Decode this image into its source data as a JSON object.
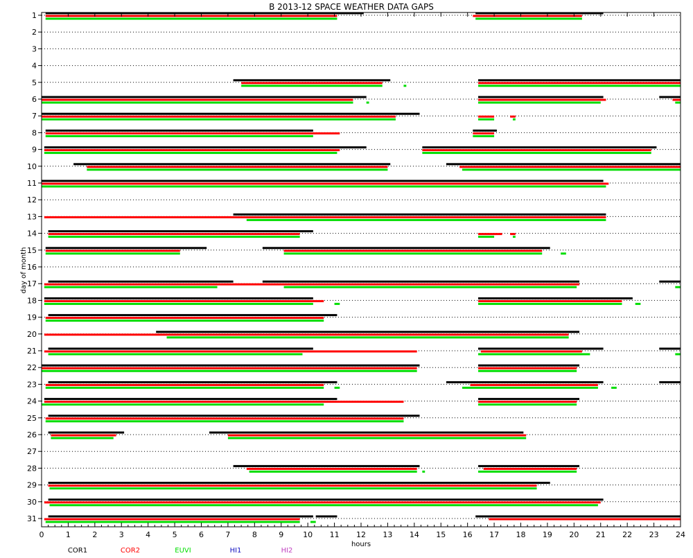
{
  "chart_data": {
    "type": "timeline",
    "title": "B  2013-12 SPACE WEATHER DATA GAPS",
    "xlabel": "hours",
    "ylabel": "day of month",
    "x_ticks": [
      "0",
      "1",
      "2",
      "3",
      "4",
      "5",
      "6",
      "7",
      "8",
      "9",
      "10",
      "11",
      "12",
      "13",
      "14",
      "15",
      "16",
      "17",
      "18",
      "19",
      "20",
      "21",
      "22",
      "23",
      "24"
    ],
    "xlim": [
      0,
      24
    ],
    "days": [
      "1",
      "2",
      "3",
      "4",
      "5",
      "6",
      "7",
      "8",
      "9",
      "10",
      "11",
      "12",
      "13",
      "14",
      "15",
      "16",
      "17",
      "18",
      "19",
      "20",
      "21",
      "22",
      "23",
      "24",
      "25",
      "26",
      "27",
      "28",
      "29",
      "30",
      "31"
    ],
    "grid": true,
    "legend_position": "bottom",
    "series": [
      {
        "name": "COR1",
        "color": "#000000",
        "gaps": [
          {
            "day": 1,
            "segments": [
              [
                0.15,
                12.1
              ],
              [
                16.3,
                21.1
              ]
            ]
          },
          {
            "day": 5,
            "segments": [
              [
                7.2,
                13.1
              ],
              [
                16.4,
                24
              ]
            ]
          },
          {
            "day": 6,
            "segments": [
              [
                0,
                12.2
              ],
              [
                16.4,
                21.1
              ],
              [
                23.2,
                24
              ]
            ]
          },
          {
            "day": 7,
            "segments": [
              [
                0,
                14.2
              ]
            ]
          },
          {
            "day": 8,
            "segments": [
              [
                0.15,
                10.2
              ],
              [
                16.2,
                17.1
              ]
            ]
          },
          {
            "day": 9,
            "segments": [
              [
                0.1,
                12.2
              ],
              [
                14.3,
                23.1
              ]
            ]
          },
          {
            "day": 10,
            "segments": [
              [
                1.2,
                13.1
              ],
              [
                15.2,
                24
              ]
            ]
          },
          {
            "day": 11,
            "segments": [
              [
                0,
                21.1
              ]
            ]
          },
          {
            "day": 13,
            "segments": [
              [
                7.2,
                21.2
              ]
            ]
          },
          {
            "day": 14,
            "segments": [
              [
                0.25,
                10.2
              ]
            ]
          },
          {
            "day": 15,
            "segments": [
              [
                0.15,
                6.2
              ],
              [
                8.3,
                19.1
              ]
            ]
          },
          {
            "day": 17,
            "segments": [
              [
                0.25,
                7.2
              ],
              [
                8.3,
                20.2
              ],
              [
                23.2,
                24
              ]
            ]
          },
          {
            "day": 18,
            "segments": [
              [
                0.1,
                10.2
              ],
              [
                16.4,
                22.2
              ]
            ]
          },
          {
            "day": 19,
            "segments": [
              [
                0.25,
                11.1
              ]
            ]
          },
          {
            "day": 20,
            "segments": [
              [
                4.3,
                20.2
              ]
            ]
          },
          {
            "day": 21,
            "segments": [
              [
                0.25,
                10.2
              ],
              [
                16.4,
                21.1
              ],
              [
                23.2,
                24
              ]
            ]
          },
          {
            "day": 22,
            "segments": [
              [
                0,
                14.2
              ],
              [
                16.4,
                20.2
              ]
            ]
          },
          {
            "day": 23,
            "segments": [
              [
                0.25,
                11.1
              ],
              [
                15.2,
                21.1
              ],
              [
                23.2,
                24
              ]
            ]
          },
          {
            "day": 24,
            "segments": [
              [
                0.1,
                11.1
              ],
              [
                16.4,
                20.2
              ]
            ]
          },
          {
            "day": 25,
            "segments": [
              [
                0.25,
                14.2
              ]
            ]
          },
          {
            "day": 26,
            "segments": [
              [
                0.25,
                3.1
              ],
              [
                6.3,
                18.1
              ]
            ]
          },
          {
            "day": 28,
            "segments": [
              [
                7.2,
                14.2
              ],
              [
                16.4,
                20.2
              ]
            ]
          },
          {
            "day": 29,
            "segments": [
              [
                0.25,
                19.1
              ]
            ]
          },
          {
            "day": 30,
            "segments": [
              [
                0.25,
                21.1
              ]
            ]
          },
          {
            "day": 31,
            "segments": [
              [
                0.25,
                10.2
              ],
              [
                10.3,
                11.1
              ],
              [
                16.3,
                24
              ]
            ]
          }
        ]
      },
      {
        "name": "COR2",
        "color": "#ff0000",
        "gaps": [
          {
            "day": 1,
            "segments": [
              [
                0.15,
                11.1
              ],
              [
                16.2,
                20.3
              ]
            ]
          },
          {
            "day": 5,
            "segments": [
              [
                7.5,
                12.8
              ],
              [
                16.4,
                24
              ]
            ]
          },
          {
            "day": 6,
            "segments": [
              [
                0,
                11.7
              ],
              [
                16.4,
                21.2
              ],
              [
                23.7,
                24
              ]
            ]
          },
          {
            "day": 7,
            "segments": [
              [
                0,
                13.3
              ],
              [
                16.4,
                17
              ],
              [
                17.6,
                17.8
              ]
            ]
          },
          {
            "day": 8,
            "segments": [
              [
                0.15,
                11.2
              ],
              [
                16.2,
                17
              ]
            ]
          },
          {
            "day": 9,
            "segments": [
              [
                0.1,
                11.2
              ],
              [
                14.3,
                22.9
              ]
            ]
          },
          {
            "day": 10,
            "segments": [
              [
                1.7,
                13.0
              ],
              [
                15.7,
                24
              ]
            ]
          },
          {
            "day": 11,
            "segments": [
              [
                0,
                21.3
              ]
            ]
          },
          {
            "day": 13,
            "segments": [
              [
                0.1,
                21.2
              ]
            ]
          },
          {
            "day": 14,
            "segments": [
              [
                0.25,
                9.7
              ],
              [
                16.4,
                17.3
              ],
              [
                17.6,
                17.8
              ]
            ]
          },
          {
            "day": 15,
            "segments": [
              [
                0.15,
                5.2
              ],
              [
                9.1,
                18.8
              ]
            ]
          },
          {
            "day": 17,
            "segments": [
              [
                0.1,
                20.2
              ]
            ]
          },
          {
            "day": 18,
            "segments": [
              [
                0.1,
                10.6
              ],
              [
                16.4,
                21.8
              ]
            ]
          },
          {
            "day": 19,
            "segments": [
              [
                0.15,
                10.6
              ]
            ]
          },
          {
            "day": 20,
            "segments": [
              [
                0.1,
                19.8
              ]
            ]
          },
          {
            "day": 21,
            "segments": [
              [
                0.1,
                14.1
              ],
              [
                16.5,
                20.3
              ]
            ]
          },
          {
            "day": 22,
            "segments": [
              [
                0,
                14.1
              ],
              [
                16.4,
                20.1
              ]
            ]
          },
          {
            "day": 23,
            "segments": [
              [
                0.15,
                10.6
              ],
              [
                16.1,
                20.9
              ]
            ]
          },
          {
            "day": 24,
            "segments": [
              [
                0.1,
                13.6
              ],
              [
                16.4,
                20.1
              ]
            ]
          },
          {
            "day": 25,
            "segments": [
              [
                0.15,
                13.6
              ]
            ]
          },
          {
            "day": 26,
            "segments": [
              [
                0.35,
                2.8
              ],
              [
                7.0,
                18.2
              ]
            ]
          },
          {
            "day": 28,
            "segments": [
              [
                7.7,
                14.1
              ],
              [
                16.6,
                20.1
              ]
            ]
          },
          {
            "day": 29,
            "segments": [
              [
                0.25,
                18.6
              ]
            ]
          },
          {
            "day": 30,
            "segments": [
              [
                0.1,
                21.0
              ]
            ]
          },
          {
            "day": 31,
            "segments": [
              [
                0.1,
                9.7
              ],
              [
                16.8,
                24
              ]
            ]
          }
        ]
      },
      {
        "name": "EUVI",
        "color": "#00dd00",
        "gaps": [
          {
            "day": 1,
            "segments": [
              [
                0.15,
                11.1
              ],
              [
                16.3,
                20.3
              ]
            ]
          },
          {
            "day": 5,
            "segments": [
              [
                7.5,
                12.8
              ],
              [
                13.6,
                13.7
              ],
              [
                16.4,
                24
              ]
            ]
          },
          {
            "day": 6,
            "segments": [
              [
                0,
                11.7
              ],
              [
                12.2,
                12.3
              ],
              [
                16.4,
                21
              ],
              [
                23.8,
                24
              ]
            ]
          },
          {
            "day": 7,
            "segments": [
              [
                0,
                13.3
              ],
              [
                16.4,
                17
              ],
              [
                17.7,
                17.8
              ]
            ]
          },
          {
            "day": 8,
            "segments": [
              [
                0.15,
                10.2
              ],
              [
                16.2,
                17
              ]
            ]
          },
          {
            "day": 9,
            "segments": [
              [
                0.1,
                11.1
              ],
              [
                14.3,
                22.9
              ]
            ]
          },
          {
            "day": 10,
            "segments": [
              [
                1.7,
                13.0
              ],
              [
                15.8,
                24
              ]
            ]
          },
          {
            "day": 11,
            "segments": [
              [
                0,
                21.2
              ]
            ]
          },
          {
            "day": 13,
            "segments": [
              [
                7.7,
                21.2
              ]
            ]
          },
          {
            "day": 14,
            "segments": [
              [
                0.25,
                9.7
              ],
              [
                16.4,
                17
              ],
              [
                17.7,
                17.8
              ]
            ]
          },
          {
            "day": 15,
            "segments": [
              [
                0.15,
                5.2
              ],
              [
                9.1,
                18.8
              ],
              [
                19.5,
                19.7
              ]
            ]
          },
          {
            "day": 17,
            "segments": [
              [
                0.1,
                6.6
              ],
              [
                9.1,
                20.1
              ],
              [
                23.8,
                24
              ]
            ]
          },
          {
            "day": 18,
            "segments": [
              [
                0.1,
                10.2
              ],
              [
                11.0,
                11.2
              ],
              [
                16.4,
                21.8
              ],
              [
                22.3,
                22.5
              ]
            ]
          },
          {
            "day": 19,
            "segments": [
              [
                0.15,
                10.6
              ]
            ]
          },
          {
            "day": 20,
            "segments": [
              [
                4.7,
                19.8
              ]
            ]
          },
          {
            "day": 21,
            "segments": [
              [
                0.25,
                9.8
              ],
              [
                16.4,
                20.6
              ],
              [
                23.8,
                24
              ]
            ]
          },
          {
            "day": 22,
            "segments": [
              [
                0,
                14.1
              ],
              [
                16.4,
                20.1
              ]
            ]
          },
          {
            "day": 23,
            "segments": [
              [
                0.15,
                10.6
              ],
              [
                11.0,
                11.2
              ],
              [
                15.8,
                20.9
              ],
              [
                21.4,
                21.6
              ]
            ]
          },
          {
            "day": 24,
            "segments": [
              [
                0,
                10.6
              ],
              [
                16.4,
                20.1
              ]
            ]
          },
          {
            "day": 25,
            "segments": [
              [
                0.15,
                13.6
              ]
            ]
          },
          {
            "day": 26,
            "segments": [
              [
                0.35,
                2.7
              ],
              [
                7.0,
                18.2
              ]
            ]
          },
          {
            "day": 28,
            "segments": [
              [
                7.8,
                14.1
              ],
              [
                14.3,
                14.4
              ],
              [
                16.4,
                20.1
              ]
            ]
          },
          {
            "day": 29,
            "segments": [
              [
                0.3,
                18.6
              ]
            ]
          },
          {
            "day": 30,
            "segments": [
              [
                0.3,
                20.9
              ]
            ]
          },
          {
            "day": 31,
            "segments": [
              [
                0.15,
                9.7
              ],
              [
                10.1,
                10.3
              ]
            ]
          }
        ]
      },
      {
        "name": "HI1",
        "color": "#1010c0",
        "gaps": []
      },
      {
        "name": "HI2",
        "color": "#c040c0",
        "gaps": []
      }
    ]
  }
}
